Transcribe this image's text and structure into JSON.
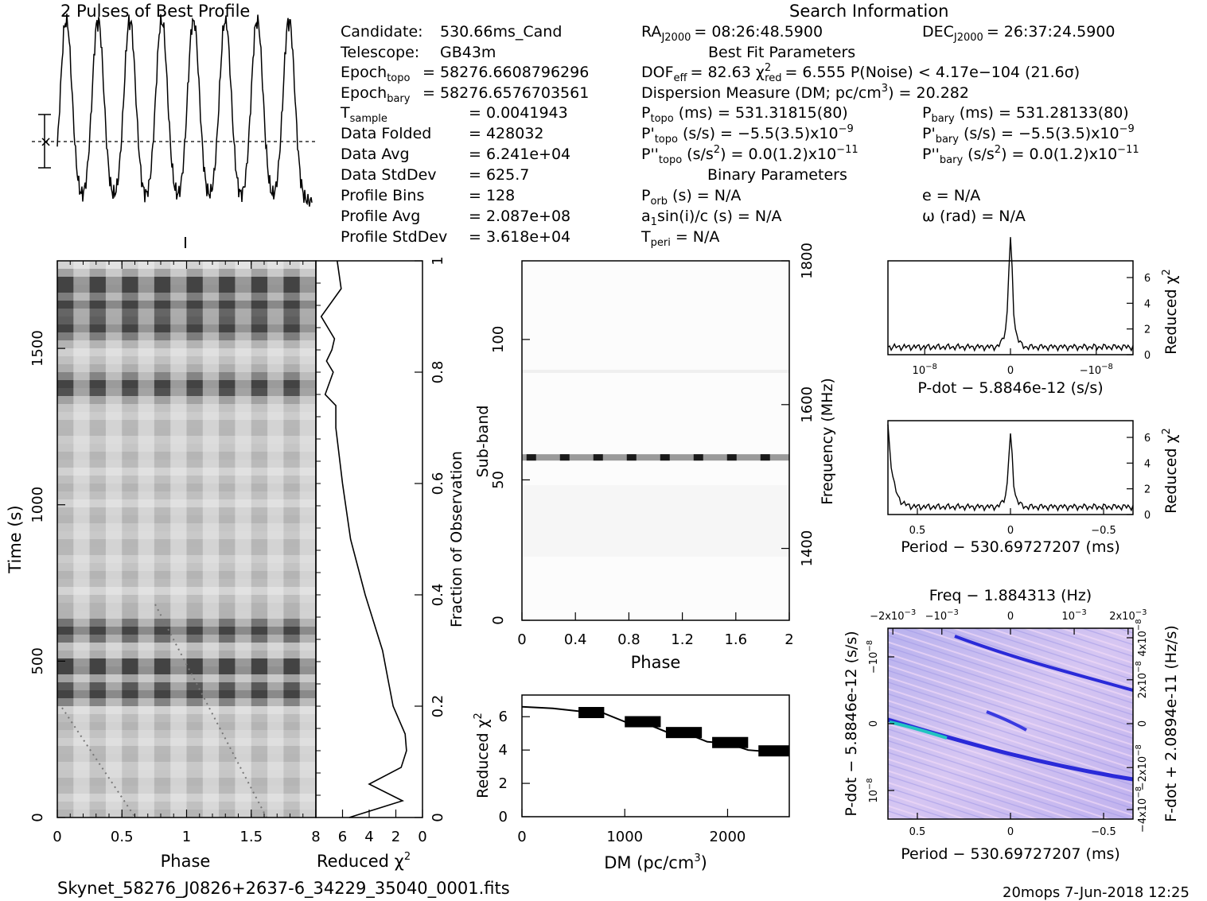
{
  "header": {
    "profile_title": "2 Pulses of Best Profile",
    "search_title": "Search Information",
    "best_fit_title": "Best Fit Parameters",
    "binary_title": "Binary Parameters"
  },
  "col1": [
    {
      "k": "Candidate:",
      "v": "530.66ms_Cand"
    },
    {
      "k": "Telescope:",
      "v": "GB43m"
    },
    {
      "k": "Epoch",
      "sub": "topo",
      "v": "= 58276.6608796296"
    },
    {
      "k": "Epoch",
      "sub": "bary",
      "v": "= 58276.6576703561"
    },
    {
      "k": "T",
      "sub": "sample",
      "v": "=  0.0041943"
    },
    {
      "k": "Data Folded",
      "v": "=  428032"
    },
    {
      "k": "Data Avg",
      "v": "=  6.241e+04"
    },
    {
      "k": "Data StdDev",
      "v": "=  625.7"
    },
    {
      "k": "Profile Bins",
      "v": "=  128"
    },
    {
      "k": "Profile Avg",
      "v": "=  2.087e+08"
    },
    {
      "k": "Profile StdDev",
      "v": "=  3.618e+04"
    }
  ],
  "col2": {
    "ra": "RA",
    "ra_sub": "J2000",
    "ra_val": "= 08:26:48.5900",
    "dof": "DOF",
    "dof_sub": "eff",
    "dof_val": "= 82.63  χ",
    "chi_sup": "2",
    "chi_sub": "red",
    "chi_val": "= 6.555  P(Noise) < 4.17e−104  (21.6σ)",
    "dm_line": "Dispersion Measure (DM; pc/cm",
    "dm_sup": "3",
    "dm_val": ") = 20.282",
    "ptopo": "P",
    "ptopo_sub": "topo",
    "ptopo_val": "(ms) =  531.31815(80)",
    "pdtopo": "P'",
    "pdtopo_sub": "topo",
    "pdtopo_val": "(s/s) = −5.5(3.5)x10",
    "pdtopo_exp": "−9",
    "pddtopo": "P''",
    "pddtopo_sub": "topo",
    "pddtopo_val": "(s/s",
    "pddtopo_sup": "2",
    "pddtopo_val2": ") = 0.0(1.2)x10",
    "pddtopo_exp": "−11",
    "porb": "P",
    "porb_sub": "orb",
    "porb_val": "(s) = N/A",
    "a1": "a",
    "a1_sub": "1",
    "a1_val": "sin(i)/c (s) = N/A",
    "tperi": "T",
    "tperi_sub": "peri",
    "tperi_val": "= N/A"
  },
  "col3": {
    "dec": "DEC",
    "dec_sub": "J2000",
    "dec_val": "= 26:37:24.5900",
    "pbary": "P",
    "pbary_sub": "bary",
    "pbary_val": "(ms) =  531.28133(80)",
    "pdbary": "P'",
    "pdbary_sub": "bary",
    "pdbary_val": "(s/s) = −5.5(3.5)x10",
    "pdbary_exp": "−9",
    "pddbary": "P''",
    "pddbary_sub": "bary",
    "pddbary_val": "(s/s",
    "pddbary_sup": "2",
    "pddbary_val2": ") = 0.0(1.2)x10",
    "pddbary_exp": "−11",
    "e_val": "e = N/A",
    "omega_val": "ω (rad) = N/A"
  },
  "labels": {
    "time": "Time (s)",
    "phase": "Phase",
    "reduced_chi": "Reduced χ",
    "chi_sup": "2",
    "fraction": "Fraction of Observation",
    "subband": "Sub-band",
    "frequency": "Frequency (MHz)",
    "dm_axis": "DM (pc/cm",
    "dm_axis_sup": "3",
    "dm_axis_end": ")",
    "pdot_axis": "P-dot − 5.8846e-12 (s/s)",
    "period_axis": "Period − 530.69727207 (ms)",
    "freq_axis": "Freq − 1.884313 (Hz)",
    "fdot_axis": "F-dot + 2.0894e-11 (Hz/s)",
    "pdot_vert": "P-dot − 5.8846e-12 (s/s)"
  },
  "footer": {
    "filename": "Skynet_58276_J0826+2637-6_34229_35040_0001.fits",
    "stamp": "20mops  7-Jun-2018 12:25"
  },
  "ticks": {
    "time_y": [
      "0",
      "500",
      "1000",
      "1500"
    ],
    "phase_x": [
      "0",
      "0.5",
      "1",
      "1.5"
    ],
    "chi_x": [
      "8",
      "6",
      "4",
      "2",
      "0"
    ],
    "frac_y": [
      "0",
      "0.2",
      "0.4",
      "0.6",
      "0.8",
      "1"
    ],
    "subband_y": [
      "0",
      "50",
      "100"
    ],
    "freq_y": [
      "1400",
      "1600",
      "1800"
    ],
    "phase2_x": [
      "0",
      "0.4",
      "0.8",
      "1.2",
      "1.6",
      "2"
    ],
    "dm_x": [
      "0",
      "1000",
      "2000"
    ],
    "dmchi_y": [
      "0",
      "2",
      "4",
      "6"
    ],
    "pdot_x": [
      "10",
      "0",
      "−10"
    ],
    "pdot_x_exp": "−8",
    "side_chi_y": [
      "0",
      "2",
      "4",
      "6"
    ],
    "period_x": [
      "0.5",
      "0",
      "−0.5"
    ],
    "freq_x": [
      "−2x10",
      "−10",
      "0",
      "10",
      "2x10"
    ],
    "freq_x_exp": "−3",
    "pdot2_y": [
      "10",
      "0",
      "−10"
    ],
    "pdot2_y_exp": "−8",
    "fdot_y": [
      "−4x10",
      "−2x10",
      "0",
      "2x10",
      "4x10"
    ],
    "fdot_y_exp": "−8"
  },
  "chart_data": [
    {
      "type": "line",
      "title": "2 Pulses of Best Profile",
      "note": "profile of 8 pulse cycles over 2 phase turns",
      "x": [
        0,
        0.25,
        0.5,
        0.75,
        1.0,
        1.25,
        1.5,
        1.75,
        2.0
      ],
      "peaks_phase": [
        0.07,
        0.32,
        0.57,
        0.82,
        1.07,
        1.32,
        1.57,
        1.82
      ]
    },
    {
      "type": "heatmap",
      "xlabel": "Phase",
      "ylabel": "Time (s)",
      "xlim": [
        0,
        2
      ],
      "ylim": [
        0,
        1780
      ],
      "bright_rows_time": [
        400,
        480,
        600,
        1380,
        1570,
        1640,
        1700
      ]
    },
    {
      "type": "line",
      "xlabel": "Reduced χ2",
      "ylabel": "Fraction of Observation",
      "xlim": [
        8,
        0
      ],
      "ylim": [
        0,
        1
      ],
      "x": [
        5.5,
        1.5,
        4.0,
        1.6,
        1.2,
        1.3,
        2.2,
        2.6,
        3.0,
        4.3,
        5.4,
        6.0,
        6.5,
        6.5,
        7.3,
        6.7,
        7.2,
        6.8,
        6.6,
        7.6,
        6.1,
        6.4
      ],
      "y": [
        0,
        0.03,
        0.06,
        0.09,
        0.12,
        0.15,
        0.2,
        0.25,
        0.3,
        0.4,
        0.5,
        0.6,
        0.7,
        0.74,
        0.76,
        0.8,
        0.82,
        0.84,
        0.86,
        0.9,
        0.95,
        1.0
      ]
    },
    {
      "type": "heatmap",
      "xlabel": "Phase",
      "ylabel": "Sub-band",
      "xlim": [
        0,
        2
      ],
      "ylim": [
        0,
        128
      ],
      "bright_subband": 58,
      "frequency_range_mhz": [
        1300,
        1800
      ]
    },
    {
      "type": "line",
      "xlabel": "DM (pc/cm3)",
      "ylabel": "Reduced χ2",
      "xlim": [
        0,
        2600
      ],
      "ylim": [
        0,
        7.3
      ],
      "x": [
        0,
        300,
        600,
        800,
        1000,
        1200,
        1400,
        1600,
        1800,
        2000,
        2200,
        2400,
        2600
      ],
      "y": [
        6.6,
        6.5,
        6.3,
        6.2,
        5.7,
        5.6,
        5.1,
        5.0,
        4.5,
        4.4,
        4.0,
        3.9,
        3.9
      ]
    },
    {
      "type": "line",
      "xlabel": "P-dot − 5.8846e-12 (s/s)",
      "ylabel": "Reduced χ2",
      "ylim": [
        0,
        7.3
      ],
      "peak_x": 0,
      "peak_y": 6.8,
      "baseline": 0.6
    },
    {
      "type": "line",
      "xlabel": "Period − 530.69727207 (ms)",
      "ylabel": "Reduced χ2",
      "xlim": [
        0.62,
        -0.62
      ],
      "ylim": [
        0,
        7.3
      ],
      "peak_x": 0,
      "peak_y": 4.7,
      "edge_y": 7.0,
      "baseline": 0.6
    },
    {
      "type": "heatmap",
      "xlabel": "Period − 530.69727207 (ms)",
      "ylabel": "P-dot − 5.8846e-12 (s/s)",
      "top_axis": "Freq − 1.884313 (Hz)",
      "right_axis": "F-dot + 2.0894e-11 (Hz/s)"
    }
  ]
}
